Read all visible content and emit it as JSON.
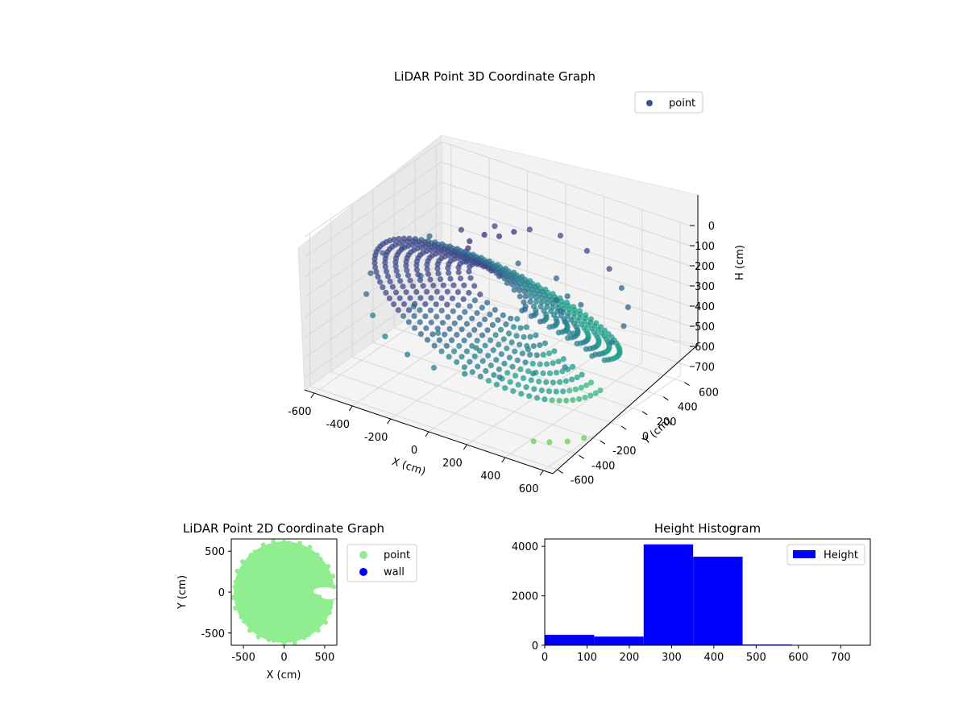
{
  "chart_data": [
    {
      "type": "scatter",
      "projection": "3d",
      "title": "LiDAR Point 3D Coordinate Graph",
      "xlabel": "X (cm)",
      "ylabel": "Y (cm)",
      "zlabel": "H (cm)",
      "xlim": [
        -650,
        650
      ],
      "ylim": [
        -650,
        650
      ],
      "zlim": [
        0,
        760
      ],
      "z_inverted": true,
      "xticks": [
        -600,
        -400,
        -200,
        0,
        200,
        400,
        600
      ],
      "yticks": [
        -600,
        -400,
        -200,
        0,
        200,
        400,
        600
      ],
      "zticks": [
        0,
        100,
        200,
        300,
        400,
        500,
        600,
        700
      ],
      "grid": true,
      "colormap": "viridis",
      "legend": {
        "placement": "upper-right",
        "entries": [
          "point"
        ]
      },
      "series": [
        {
          "name": "point",
          "color": "#3b528b",
          "structure": "ring-shaped point cloud, approx. radius 600 cm, heights approx. 100 to 730 cm",
          "points": [
            [
              -600,
              0,
              300
            ],
            [
              -580,
              150,
              320
            ],
            [
              -520,
              300,
              300
            ],
            [
              -420,
              420,
              280
            ],
            [
              -300,
              520,
              260
            ],
            [
              -150,
              580,
              250
            ],
            [
              0,
              600,
              240
            ],
            [
              150,
              580,
              260
            ],
            [
              300,
              520,
              280
            ],
            [
              420,
              420,
              300
            ],
            [
              520,
              300,
              320
            ],
            [
              580,
              150,
              340
            ],
            [
              600,
              0,
              360
            ],
            [
              580,
              -150,
              380
            ],
            [
              520,
              -300,
              400
            ],
            [
              420,
              -420,
              420
            ],
            [
              300,
              -520,
              440
            ],
            [
              150,
              -580,
              450
            ],
            [
              0,
              -600,
              460
            ],
            [
              -150,
              -580,
              450
            ],
            [
              -300,
              -520,
              430
            ],
            [
              -420,
              -420,
              400
            ],
            [
              -520,
              -300,
              370
            ],
            [
              -580,
              -150,
              340
            ],
            [
              -400,
              0,
              350
            ],
            [
              -300,
              250,
              340
            ],
            [
              -100,
              380,
              330
            ],
            [
              100,
              380,
              340
            ],
            [
              300,
              250,
              360
            ],
            [
              400,
              0,
              380
            ],
            [
              300,
              -250,
              400
            ],
            [
              100,
              -380,
              410
            ],
            [
              -100,
              -380,
              400
            ],
            [
              -300,
              -250,
              380
            ],
            [
              -200,
              100,
              150
            ],
            [
              -150,
              150,
              120
            ],
            [
              -100,
              200,
              130
            ],
            [
              -50,
              250,
              110
            ],
            [
              -180,
              50,
              160
            ],
            [
              200,
              200,
              350
            ],
            [
              250,
              150,
              370
            ],
            [
              300,
              100,
              390
            ],
            [
              350,
              50,
              410
            ],
            [
              230,
              250,
              340
            ],
            [
              620,
              -300,
              720
            ],
            [
              600,
              -420,
              700
            ],
            [
              550,
              -500,
              690
            ],
            [
              500,
              -560,
              680
            ]
          ]
        }
      ]
    },
    {
      "type": "scatter",
      "title": "LiDAR Point 2D Coordinate Graph",
      "xlabel": "X (cm)",
      "ylabel": "Y (cm)",
      "xlim": [
        -650,
        650
      ],
      "ylim": [
        -650,
        650
      ],
      "xticks": [
        -500,
        0,
        500
      ],
      "yticks": [
        -500,
        0,
        500
      ],
      "legend": {
        "placement": "right-outside",
        "entries": [
          "point",
          "wall"
        ]
      },
      "series": [
        {
          "name": "point",
          "color": "#90ee90",
          "structure": "filled disc approx. radius 620 cm"
        },
        {
          "name": "wall",
          "color": "#0000ff",
          "points": []
        }
      ]
    },
    {
      "type": "bar",
      "title": "Height Histogram",
      "xlabel": "",
      "ylabel": "",
      "xlim": [
        0,
        770
      ],
      "ylim": [
        0,
        4300
      ],
      "xticks": [
        0,
        100,
        200,
        300,
        400,
        500,
        600,
        700
      ],
      "yticks": [
        0,
        2000,
        4000
      ],
      "bin_edges": [
        0,
        117,
        234,
        351,
        468,
        585,
        702,
        770
      ],
      "values": [
        420,
        350,
        4080,
        3580,
        30,
        0,
        0
      ],
      "legend": {
        "placement": "upper-right",
        "entries": [
          "Height"
        ]
      },
      "series": [
        {
          "name": "Height",
          "color": "#0000ff"
        }
      ]
    }
  ]
}
